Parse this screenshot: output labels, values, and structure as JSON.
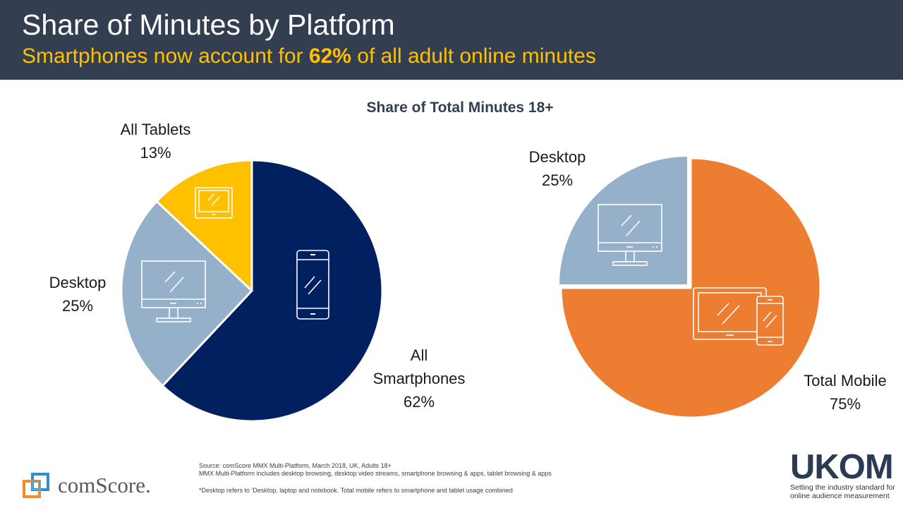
{
  "header": {
    "title": "Share of Minutes by Platform",
    "subtitle_prefix": "Smartphones now account for ",
    "subtitle_highlight": "62%",
    "subtitle_suffix": " of all adult online minutes"
  },
  "colors": {
    "header_bg": "#333f50",
    "subtitle": "#ffc000",
    "smartphones": "#002060",
    "desktop": "#95b0c9",
    "tablets": "#ffc000",
    "total_mobile": "#ed7d31"
  },
  "chart_data": [
    {
      "type": "pie",
      "title": "Share of Total Minutes 18+",
      "slices": [
        {
          "label": "All Smartphones",
          "value": 62,
          "display": "62%",
          "color": "#002060",
          "icon": "smartphone-icon"
        },
        {
          "label": "Desktop",
          "value": 25,
          "display": "25%",
          "color": "#95b0c9",
          "icon": "desktop-monitor-icon"
        },
        {
          "label": "All Tablets",
          "value": 13,
          "display": "13%",
          "color": "#ffc000",
          "icon": "tablet-icon"
        }
      ]
    },
    {
      "type": "pie",
      "slices": [
        {
          "label": "Total Mobile",
          "value": 75,
          "display": "75%",
          "color": "#ed7d31",
          "icon": "tablet-and-phone-icon"
        },
        {
          "label": "Desktop",
          "value": 25,
          "display": "25%",
          "color": "#95b0c9",
          "icon": "desktop-monitor-icon"
        }
      ]
    }
  ],
  "labels": {
    "left_tablets_name": "All Tablets",
    "left_tablets_value": "13%",
    "left_desktop_name": "Desktop",
    "left_desktop_value": "25%",
    "left_phones_name_1": "All",
    "left_phones_name_2": "Smartphones",
    "left_phones_value": "62%",
    "right_desktop_name": "Desktop",
    "right_desktop_value": "25%",
    "right_mobile_name": "Total Mobile",
    "right_mobile_value": "75%"
  },
  "footer": {
    "source_line1": "Source: comScore MMX Multi-Platform,  March 2018, UK, Adults 18+",
    "source_line2": "MMX Multi-Platform includes desktop browsing, desktop video streams, smartphone browsing & apps, tablet browsing & apps",
    "note": "*Desktop refers to 'Desktop, laptop and notebook. Total mobile refers to smartphone and tablet usage combined",
    "comscore_logo_text": "comScore.",
    "ukom_logo_text": "UKOM",
    "ukom_tagline_1": "Setting the industry standard for",
    "ukom_tagline_2": "online audience measurement"
  }
}
